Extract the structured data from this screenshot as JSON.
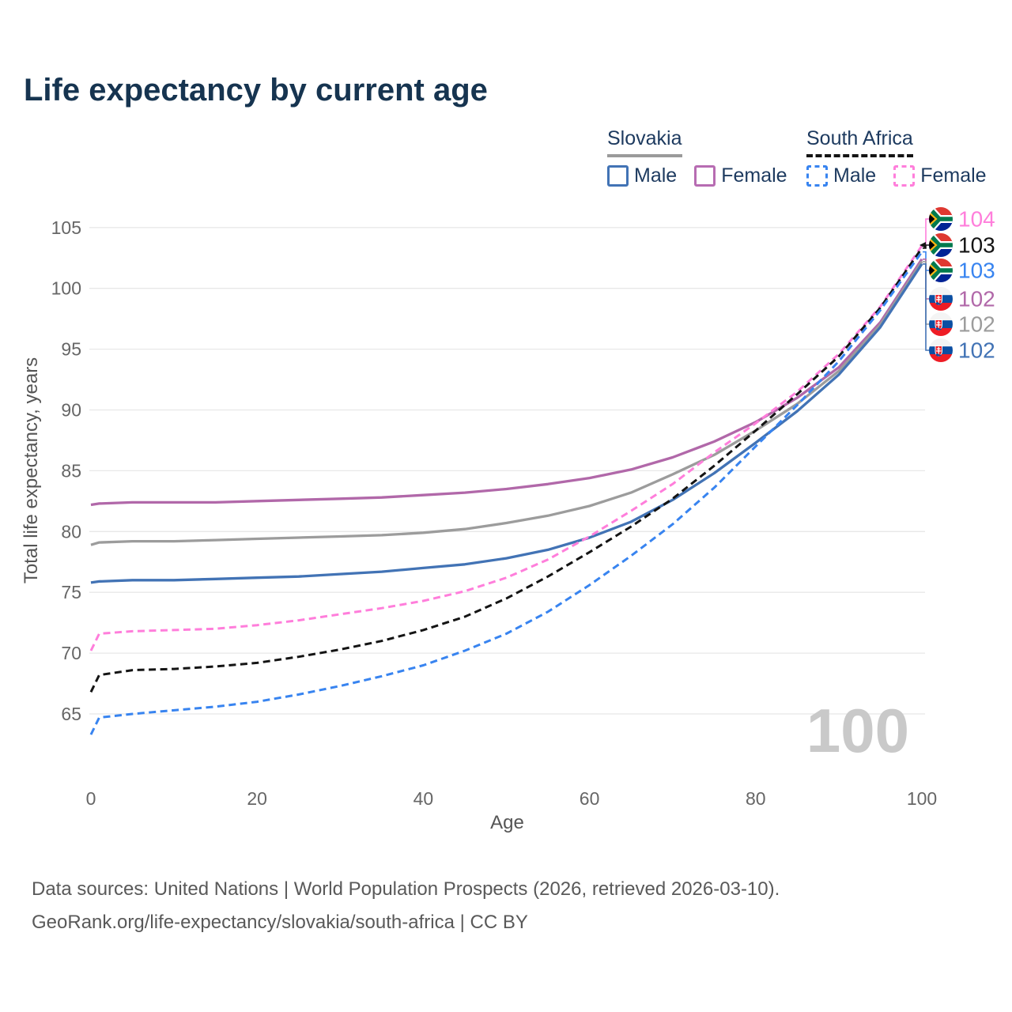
{
  "title": "Life expectancy by current age",
  "legend": {
    "slovakia": {
      "country": "Slovakia",
      "male": "Male",
      "female": "Female"
    },
    "south_africa": {
      "country": "South Africa",
      "male": "Male",
      "female": "Female"
    }
  },
  "watermark_age": "100",
  "footer": {
    "line1": "Data sources: United Nations | World Population Prospects (2026, retrieved 2026-03-10).",
    "line2": "GeoRank.org/life-expectancy/slovakia/south-africa | CC BY"
  },
  "colors": {
    "title_text": "#163450",
    "legend_text": "#1d3a5f",
    "axis_text": "#666666",
    "gridline": "#e8e8e8",
    "watermark": "#c9c9c9",
    "slovakia_male": "#4273b5",
    "slovakia_female": "#b168a9",
    "slovakia_total": "#9c9c9c",
    "south_africa_male": "#3884f0",
    "south_africa_female": "#ff7edb",
    "south_africa_total": "#141414"
  },
  "chart_data": {
    "type": "line",
    "title": "Life expectancy by current age",
    "xlabel": "Age",
    "ylabel": "Total life expectancy, years",
    "x_ticks": [
      0,
      20,
      40,
      60,
      80,
      100
    ],
    "y_ticks": [
      65,
      70,
      75,
      80,
      85,
      90,
      95,
      100,
      105
    ],
    "xlim": [
      0,
      100
    ],
    "ylim": [
      63,
      105.5
    ],
    "grid": true,
    "legend_position": "top-right",
    "hover_age": 100,
    "x": [
      0,
      1,
      5,
      10,
      15,
      20,
      25,
      30,
      35,
      40,
      45,
      50,
      55,
      60,
      65,
      70,
      75,
      80,
      85,
      90,
      95,
      100
    ],
    "series": [
      {
        "name": "Slovakia Female",
        "country": "Slovakia",
        "sex": "Female",
        "color": "#b168a9",
        "dashed": false,
        "flag": "slovakia",
        "end_label": "102",
        "values": [
          82.2,
          82.3,
          82.4,
          82.4,
          82.4,
          82.5,
          82.6,
          82.7,
          82.8,
          83.0,
          83.2,
          83.5,
          83.9,
          84.4,
          85.1,
          86.1,
          87.4,
          89.0,
          91.0,
          93.5,
          97.2,
          102.4
        ]
      },
      {
        "name": "Slovakia Total",
        "country": "Slovakia",
        "sex": "All",
        "color": "#9c9c9c",
        "dashed": false,
        "flag": "slovakia",
        "end_label": "102",
        "values": [
          78.9,
          79.1,
          79.2,
          79.2,
          79.3,
          79.4,
          79.5,
          79.6,
          79.7,
          79.9,
          80.2,
          80.7,
          81.3,
          82.1,
          83.2,
          84.7,
          86.3,
          88.3,
          90.5,
          93.2,
          97.0,
          102.2
        ]
      },
      {
        "name": "Slovakia Male",
        "country": "Slovakia",
        "sex": "Male",
        "color": "#4273b5",
        "dashed": false,
        "flag": "slovakia",
        "end_label": "102",
        "values": [
          75.8,
          75.9,
          76.0,
          76.0,
          76.1,
          76.2,
          76.3,
          76.5,
          76.7,
          77.0,
          77.3,
          77.8,
          78.5,
          79.5,
          80.8,
          82.6,
          84.8,
          87.3,
          89.9,
          92.9,
          96.8,
          102.0
        ]
      },
      {
        "name": "South Africa Female",
        "country": "South Africa",
        "sex": "Female",
        "color": "#ff7edb",
        "dashed": true,
        "flag": "south-africa",
        "end_label": "104",
        "values": [
          70.2,
          71.6,
          71.8,
          71.9,
          72.0,
          72.3,
          72.7,
          73.2,
          73.7,
          74.3,
          75.1,
          76.2,
          77.7,
          79.6,
          81.7,
          83.9,
          86.5,
          88.9,
          91.5,
          94.6,
          98.5,
          103.5
        ]
      },
      {
        "name": "South Africa Total",
        "country": "South Africa",
        "sex": "All",
        "color": "#141414",
        "dashed": true,
        "flag": "south-africa",
        "end_label": "103",
        "values": [
          66.8,
          68.2,
          68.6,
          68.7,
          68.9,
          69.2,
          69.7,
          70.3,
          71.0,
          71.9,
          73.0,
          74.5,
          76.3,
          78.3,
          80.4,
          82.7,
          85.4,
          88.3,
          91.3,
          94.4,
          98.4,
          103.3
        ]
      },
      {
        "name": "South Africa Male",
        "country": "South Africa",
        "sex": "Male",
        "color": "#3884f0",
        "dashed": true,
        "flag": "south-africa",
        "end_label": "103",
        "values": [
          63.3,
          64.7,
          65.0,
          65.3,
          65.6,
          66.0,
          66.6,
          67.3,
          68.1,
          69.0,
          70.2,
          71.6,
          73.4,
          75.6,
          78.0,
          80.6,
          83.6,
          87.0,
          90.4,
          94.0,
          98.2,
          103.0
        ]
      }
    ]
  }
}
